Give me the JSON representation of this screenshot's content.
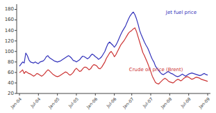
{
  "chart_data": {
    "type": "line",
    "categories": [
      "Jan-04",
      null,
      null,
      null,
      null,
      null,
      null,
      null,
      null,
      null,
      null,
      null,
      "Jul-04",
      null,
      null,
      null,
      null,
      null,
      null,
      null,
      null,
      null,
      null,
      null,
      "Jan-05",
      null,
      null,
      null,
      null,
      null,
      null,
      null,
      null,
      null,
      null,
      null,
      "Jul-05",
      null,
      null,
      null,
      null,
      null,
      null,
      null,
      null,
      null,
      null,
      null,
      "Jan-06",
      null,
      null,
      null,
      null,
      null,
      null,
      null,
      null,
      null,
      null,
      null,
      "Jul-06",
      null,
      null,
      null,
      null,
      null,
      null,
      null,
      null,
      null,
      null,
      "Jan-07",
      null,
      null,
      null,
      null,
      null,
      null,
      null,
      null,
      null,
      null,
      null,
      "Jul-07",
      null,
      null,
      null,
      null,
      null,
      null,
      null,
      null,
      null,
      null,
      null,
      "Jan-08",
      null,
      null,
      null,
      null,
      null,
      null,
      null,
      null,
      null,
      null,
      null,
      "Jul-08",
      null,
      null,
      null,
      null,
      null,
      null,
      null,
      null,
      null,
      null,
      null,
      "Jan-09"
    ],
    "series": [
      {
        "name": "Jet fuel price",
        "color": "#3333bb",
        "values": [
          72,
          76,
          80,
          78,
          97,
          92,
          84,
          80,
          79,
          78,
          80,
          78,
          77,
          80,
          81,
          82,
          85,
          90,
          92,
          88,
          86,
          84,
          82,
          81,
          80,
          81,
          82,
          84,
          86,
          88,
          90,
          92,
          90,
          87,
          83,
          82,
          80,
          82,
          84,
          88,
          91,
          90,
          88,
          86,
          88,
          92,
          95,
          93,
          90,
          88,
          85,
          87,
          90,
          95,
          100,
          108,
          115,
          118,
          115,
          112,
          108,
          112,
          118,
          125,
          132,
          138,
          143,
          148,
          155,
          162,
          168,
          172,
          175,
          170,
          162,
          152,
          140,
          132,
          125,
          118,
          112,
          107,
          100,
          92,
          85,
          80,
          72,
          68,
          64,
          60,
          57,
          56,
          58,
          60,
          62,
          60,
          58,
          57,
          55,
          53,
          52,
          53,
          55,
          57,
          55,
          53,
          55,
          57,
          58,
          59,
          58,
          57,
          56,
          55,
          54,
          55,
          57,
          58,
          56,
          55
        ]
      },
      {
        "name": "Crude oil price (Brent)",
        "color": "#cc3333",
        "values": [
          60,
          62,
          65,
          58,
          62,
          60,
          58,
          57,
          55,
          53,
          55,
          58,
          57,
          55,
          53,
          55,
          58,
          62,
          65,
          63,
          60,
          57,
          55,
          53,
          52,
          53,
          55,
          57,
          59,
          61,
          60,
          57,
          55,
          57,
          60,
          65,
          68,
          65,
          62,
          63,
          67,
          70,
          70,
          68,
          65,
          67,
          72,
          75,
          74,
          72,
          68,
          67,
          70,
          75,
          80,
          87,
          92,
          97,
          100,
          96,
          90,
          94,
          100,
          106,
          112,
          116,
          120,
          125,
          130,
          135,
          138,
          140,
          143,
          145,
          138,
          128,
          118,
          108,
          98,
          92,
          85,
          78,
          70,
          62,
          53,
          47,
          41,
          39,
          38,
          41,
          44,
          47,
          49,
          47,
          44,
          42,
          41,
          40,
          42,
          45,
          47,
          46,
          44,
          46,
          49,
          51,
          52,
          51,
          49,
          47,
          48,
          50,
          51,
          50,
          49,
          47,
          46,
          45,
          44,
          43
        ]
      }
    ],
    "ylim": [
      20,
      190
    ],
    "yticks": [
      20,
      40,
      60,
      80,
      100,
      120,
      140,
      160,
      180
    ],
    "grid": false
  }
}
